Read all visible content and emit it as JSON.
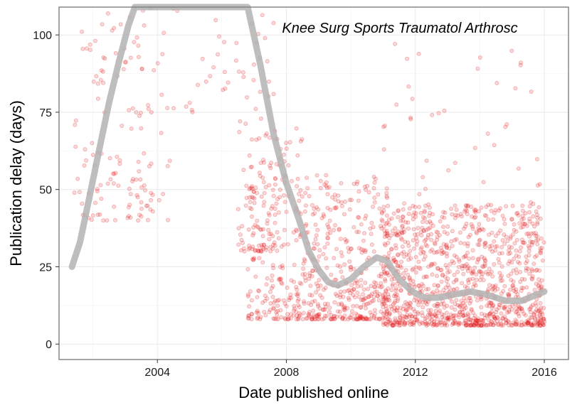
{
  "chart_data": {
    "type": "scatter",
    "xlabel": "Date published online",
    "ylabel": "Publication delay (days)",
    "annotation": "Knee Surg Sports Traumatol Arthrosc",
    "xlim": [
      2000.95,
      2016.75
    ],
    "ylim": [
      -5,
      109
    ],
    "x_ticks": [
      2004,
      2008,
      2012,
      2016
    ],
    "y_ticks": [
      0,
      25,
      50,
      75,
      100
    ],
    "grid": true,
    "legend": "none",
    "point_color": "#e41a1c",
    "point_alpha": 0.15,
    "point_clusters": [
      {
        "x": [
          2001.4,
          2004.4
        ],
        "y": [
          40,
          109
        ],
        "n": 140
      },
      {
        "x": [
          2004.4,
          2006.5
        ],
        "y": [
          75,
          109
        ],
        "n": 22
      },
      {
        "x": [
          2006.5,
          2007.7
        ],
        "y": [
          30,
          109
        ],
        "n": 90
      },
      {
        "x": [
          2006.8,
          2008.5
        ],
        "y": [
          8,
          70
        ],
        "n": 220
      },
      {
        "x": [
          2008.5,
          2011.2
        ],
        "y": [
          8,
          55
        ],
        "n": 420
      },
      {
        "x": [
          2011.0,
          2016.0
        ],
        "y": [
          6,
          45
        ],
        "n": 1100
      },
      {
        "x": [
          2011.0,
          2016.0
        ],
        "y": [
          45,
          100
        ],
        "n": 45
      }
    ],
    "smooth_curve": {
      "color": "#b3b3b3",
      "x": [
        2001.35,
        2001.6,
        2001.9,
        2002.2,
        2002.5,
        2002.8,
        2003.1,
        2003.3,
        2006.8,
        2007.2,
        2007.6,
        2008.0,
        2008.4,
        2008.7,
        2009.0,
        2009.3,
        2009.6,
        2010.0,
        2010.4,
        2010.8,
        2011.1,
        2011.5,
        2011.9,
        2012.3,
        2012.7,
        2013.2,
        2013.7,
        2014.2,
        2014.8,
        2015.3,
        2016.0
      ],
      "y": [
        25,
        33,
        48,
        63,
        78,
        91,
        103,
        109,
        109,
        90,
        68,
        52,
        40,
        30,
        24,
        20,
        19,
        21,
        25,
        28,
        27,
        21,
        17,
        15,
        15,
        16,
        17,
        16,
        14,
        14,
        17
      ]
    }
  }
}
